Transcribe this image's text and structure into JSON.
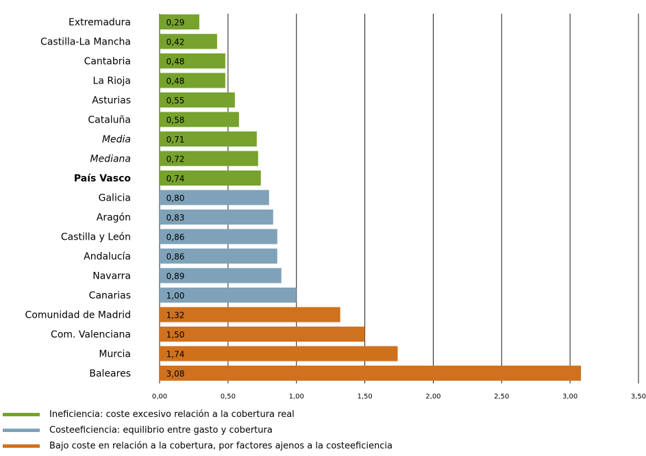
{
  "chart_data": {
    "type": "bar",
    "orientation": "horizontal",
    "title": "",
    "categories": [
      "Extremadura",
      "Castilla-La Mancha",
      "Cantabria",
      "La Rioja",
      "Asturias",
      "Cataluña",
      "Media",
      "Mediana",
      "País Vasco",
      "Galicia",
      "Aragón",
      "Castilla y León",
      "Andalucía",
      "Navarra",
      "Canarias",
      "Comunidad de Madrid",
      "Com. Valenciana",
      "Murcia",
      "Baleares"
    ],
    "category_styles": [
      "normal",
      "normal",
      "normal",
      "normal",
      "normal",
      "normal",
      "italic",
      "italic",
      "bold",
      "normal",
      "normal",
      "normal",
      "normal",
      "normal",
      "normal",
      "normal",
      "normal",
      "normal",
      "normal"
    ],
    "values": [
      0.29,
      0.42,
      0.48,
      0.48,
      0.55,
      0.58,
      0.71,
      0.72,
      0.74,
      0.8,
      0.83,
      0.86,
      0.86,
      0.89,
      1.0,
      1.32,
      1.5,
      1.74,
      3.08
    ],
    "value_labels": [
      "0,29",
      "0,42",
      "0,48",
      "0,48",
      "0,55",
      "0,58",
      "0,71",
      "0,72",
      "0,74",
      "0,80",
      "0,83",
      "0,86",
      "0,86",
      "0,89",
      "1,00",
      "1,32",
      "1,50",
      "1,74",
      "3,08"
    ],
    "groups": [
      0,
      0,
      0,
      0,
      0,
      0,
      0,
      0,
      0,
      1,
      1,
      1,
      1,
      1,
      1,
      2,
      2,
      2,
      2
    ],
    "xlim": [
      0,
      3.5
    ],
    "xticks": [
      0,
      0.5,
      1,
      1.5,
      2,
      2.5,
      3,
      3.5
    ],
    "xtick_labels": [
      "0,00",
      "0,50",
      "1,00",
      "1,50",
      "2,00",
      "2,50",
      "3,00",
      "3,50"
    ],
    "grid": true,
    "legend": [
      {
        "label": "Ineficiencia: coste excesivo relación a la cobertura real",
        "color": "#76a22d"
      },
      {
        "label": "Costeeficiencia: equilibrio entre gasto y cobertura",
        "color": "#7fa2b8"
      },
      {
        "label": "Bajo coste en relación a la cobertura, por factores ajenos a la costeeficiencia",
        "color": "#d0711d"
      }
    ],
    "legend_position": "bottom-left"
  }
}
